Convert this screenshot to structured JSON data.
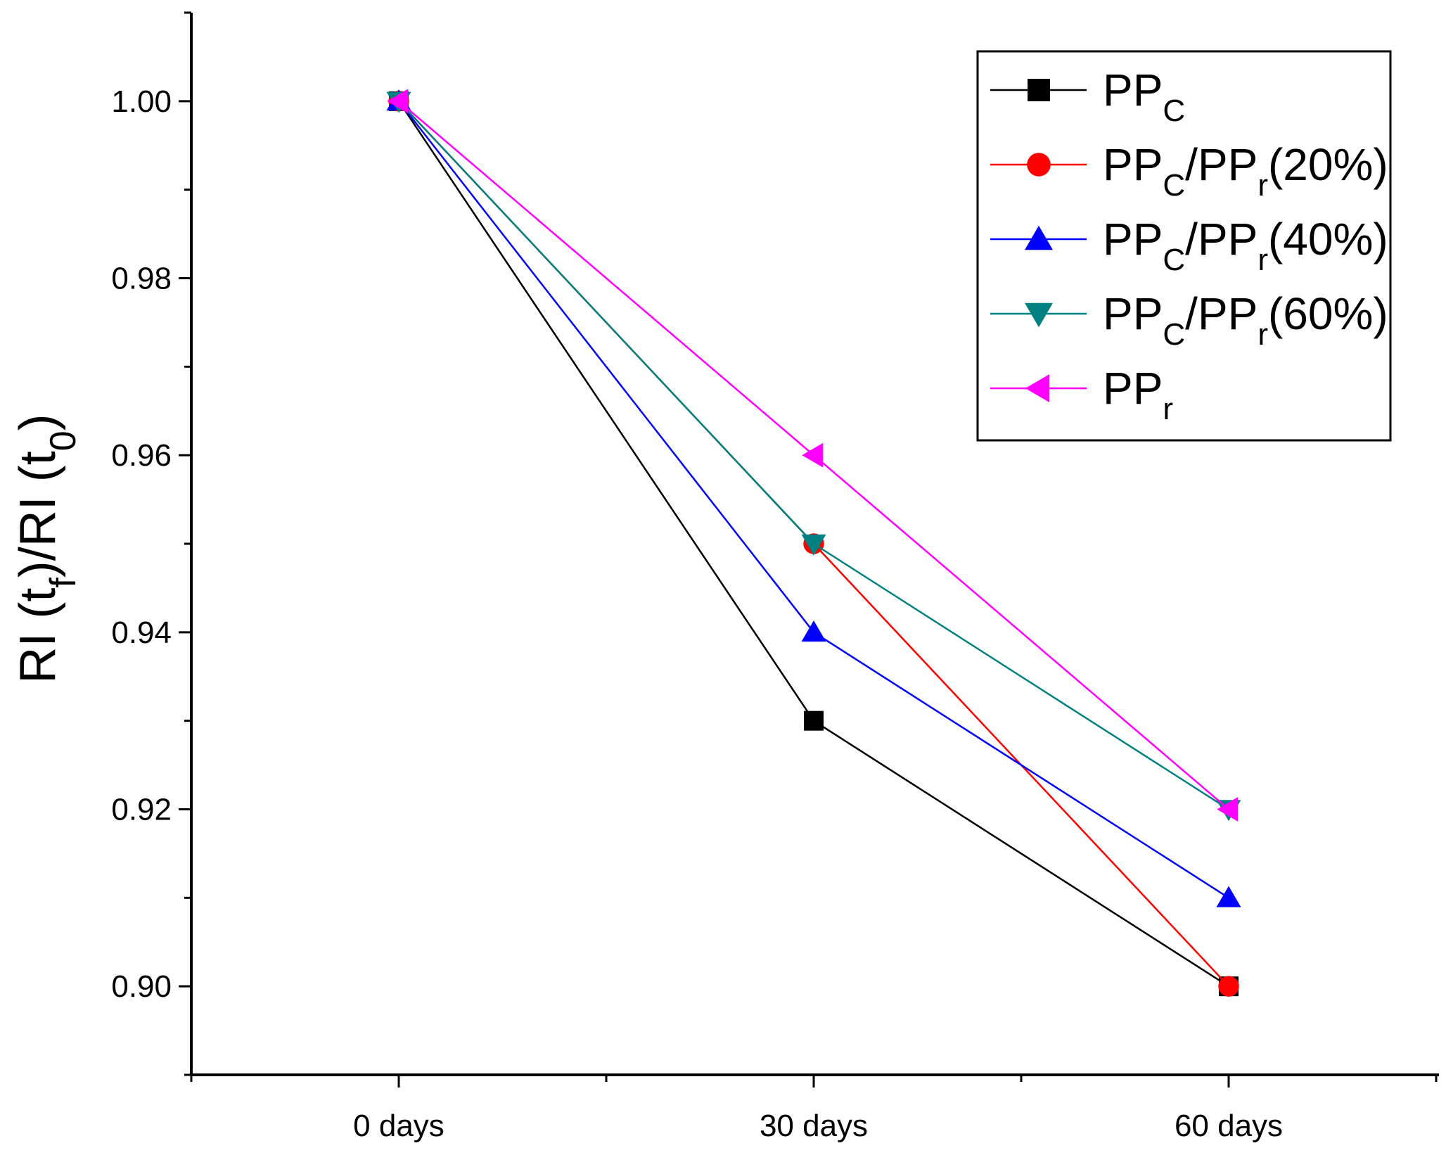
{
  "chart_data": {
    "type": "line",
    "title": "",
    "xlabel": "",
    "ylabel": "RI (tf)/RI (t0)",
    "ylabel_parts": {
      "a": "RI (t",
      "sub1": "f",
      "b": ")/RI (t",
      "sub2": "0",
      "c": ")"
    },
    "categories": [
      "0 days",
      "30 days",
      "60 days"
    ],
    "ylim": [
      0.89,
      1.01
    ],
    "yticks": [
      "0.90",
      "0.92",
      "0.94",
      "0.96",
      "0.98",
      "1.00"
    ],
    "grid": false,
    "legend_position": "top-right",
    "series": [
      {
        "name": "PPC",
        "label_parts": {
          "main": "PP",
          "sub": "C",
          "rest": ""
        },
        "values": [
          1.0,
          0.93,
          0.9
        ],
        "color": "#000000",
        "marker": "square"
      },
      {
        "name": "PPC/PPr(20%)",
        "label_parts": {
          "main": "PP",
          "sub": "C",
          "rest": "/PP",
          "sub2": "r",
          "tail": "(20%)"
        },
        "values": [
          1.0,
          0.95,
          0.9
        ],
        "color": "#ff0000",
        "marker": "circle"
      },
      {
        "name": "PPC/PPr(40%)",
        "label_parts": {
          "main": "PP",
          "sub": "C",
          "rest": "/PP",
          "sub2": "r",
          "tail": "(40%)"
        },
        "values": [
          1.0,
          0.94,
          0.91
        ],
        "color": "#0000ff",
        "marker": "triangle-up"
      },
      {
        "name": "PPC/PPr(60%)",
        "label_parts": {
          "main": "PP",
          "sub": "C",
          "rest": "/PP",
          "sub2": "r",
          "tail": "(60%)"
        },
        "values": [
          1.0,
          0.95,
          0.92
        ],
        "color": "#008080",
        "marker": "triangle-down"
      },
      {
        "name": "PPr",
        "label_parts": {
          "main": "PP",
          "sub": "r",
          "rest": ""
        },
        "values": [
          1.0,
          0.96,
          0.92
        ],
        "color": "#ff00ff",
        "marker": "triangle-left"
      }
    ]
  }
}
